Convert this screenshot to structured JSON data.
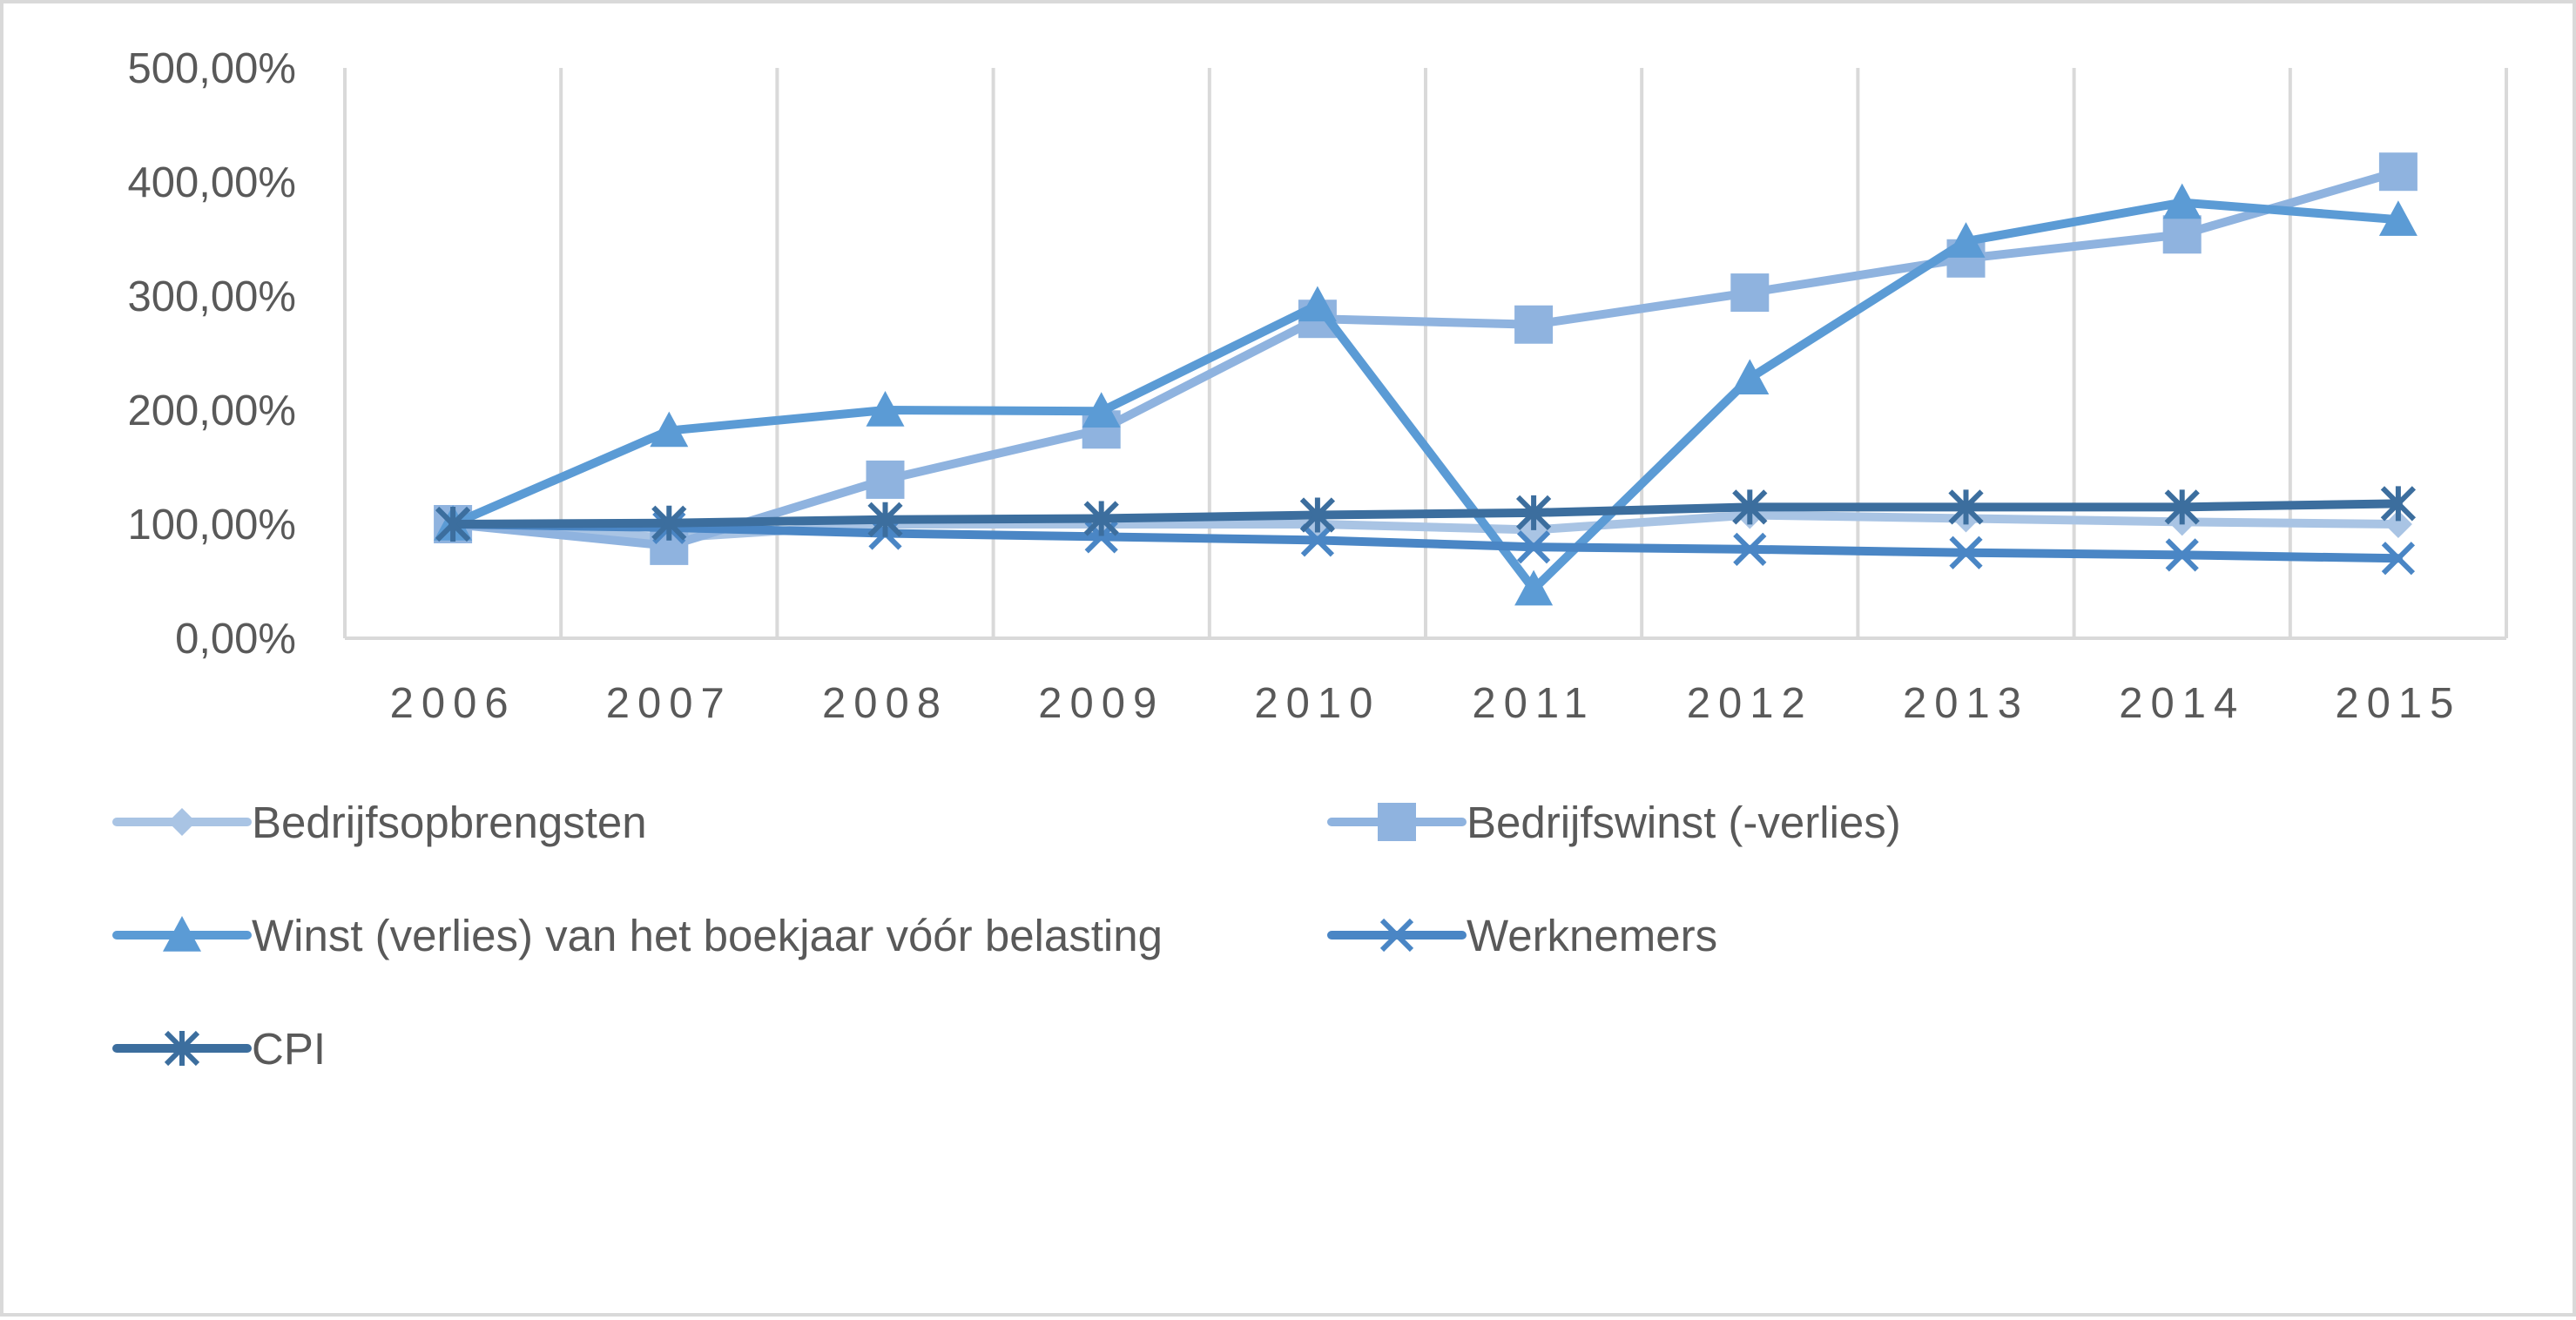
{
  "chart_data": {
    "type": "line",
    "title": "",
    "xlabel": "",
    "ylabel": "",
    "categories": [
      "2006",
      "2007",
      "2008",
      "2009",
      "2010",
      "2011",
      "2012",
      "2013",
      "2014",
      "2015"
    ],
    "ylim": [
      0,
      500
    ],
    "yticks": [
      0,
      100,
      200,
      300,
      400,
      500
    ],
    "ytick_labels": [
      "0,00%",
      "100,00%",
      "200,00%",
      "300,00%",
      "400,00%",
      "500,00%"
    ],
    "grid": "vertical",
    "legend_position": "bottom",
    "series": [
      {
        "name": "Bedrijfsopbrengsten",
        "marker": "diamond",
        "color": "#a9c4e4",
        "values": [
          100,
          88,
          100,
          100,
          100,
          95,
          108,
          105,
          102,
          100
        ]
      },
      {
        "name": "Bedrijfswinst (-verlies)",
        "marker": "square",
        "color": "#8fb3df",
        "values": [
          100,
          81,
          139,
          183,
          280,
          275,
          303,
          333,
          354,
          409
        ]
      },
      {
        "name": "Winst (verlies) van het boekjaar vóór belasting",
        "marker": "triangle",
        "color": "#5b9bd5",
        "values": [
          100,
          182,
          200,
          199,
          292,
          43,
          228,
          348,
          382,
          367
        ]
      },
      {
        "name": "Werknemers",
        "marker": "x",
        "color": "#4a86c5",
        "values": [
          100,
          97,
          92,
          89,
          86,
          80,
          78,
          75,
          73,
          70
        ]
      },
      {
        "name": "CPI",
        "marker": "asterisk",
        "color": "#3c6e9e",
        "values": [
          100,
          101,
          104,
          105,
          108,
          110,
          115,
          115,
          115,
          118
        ]
      }
    ]
  }
}
